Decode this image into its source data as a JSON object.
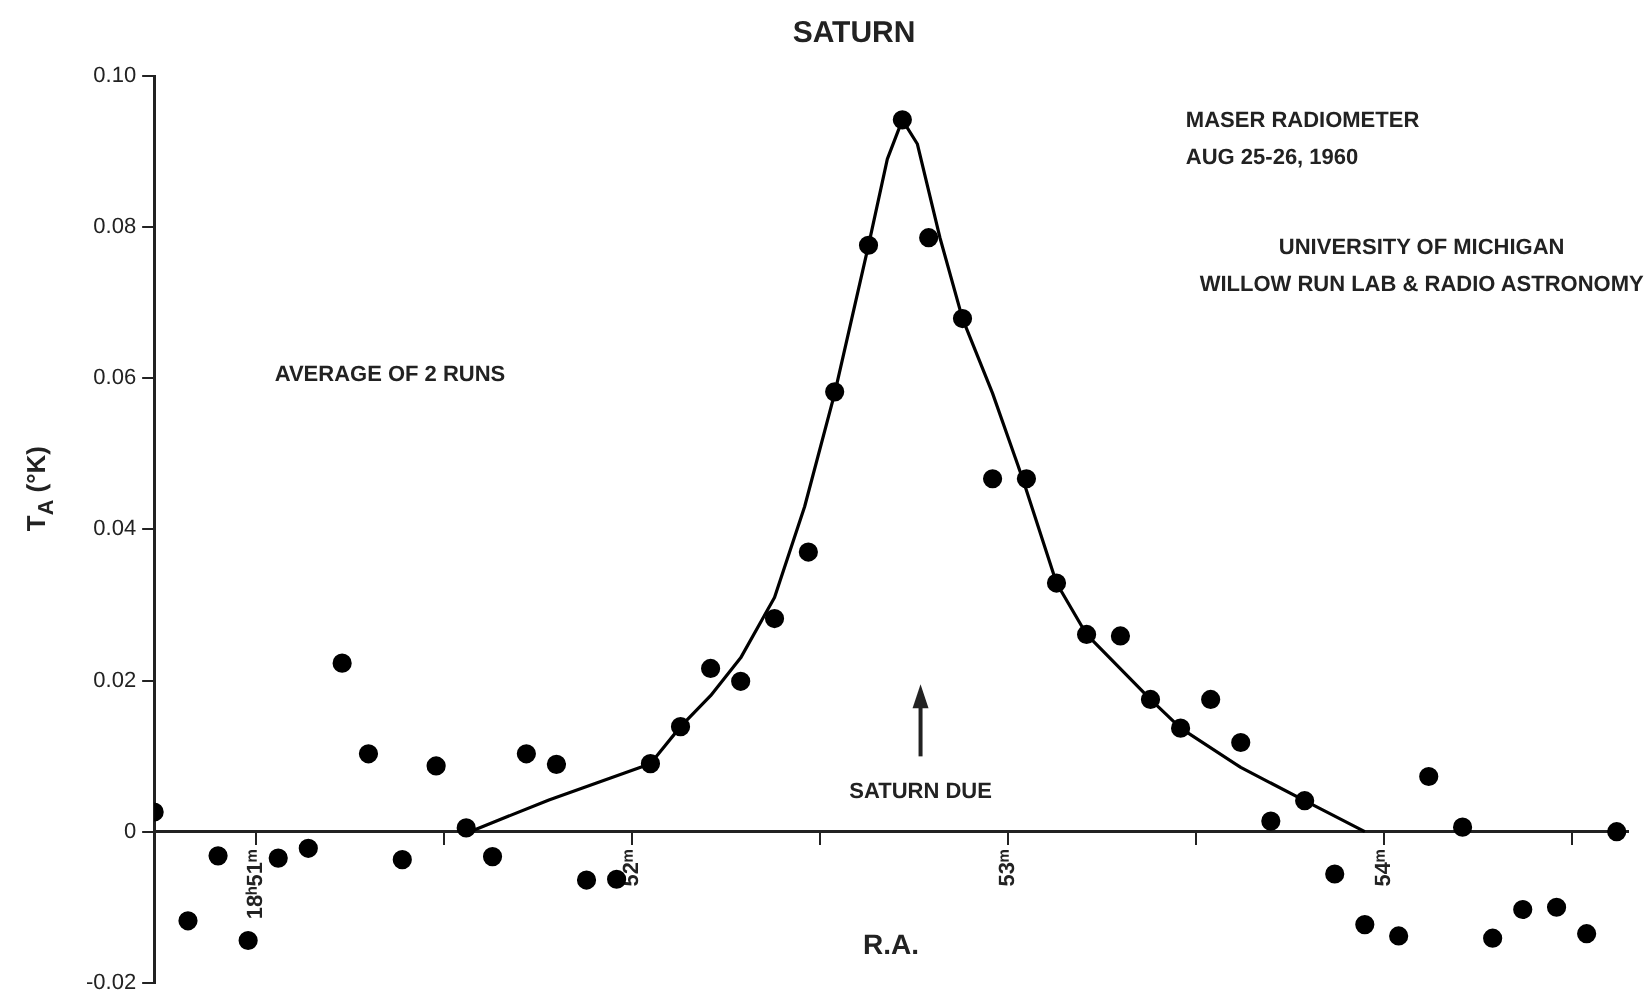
{
  "chart_data": {
    "type": "scatter",
    "title": "SATURN",
    "xlabel": "R.A.",
    "ylabel": "T$_{A}$ (°K)",
    "annotations": [
      "MASER RADIOMETER",
      "AUG 25-26, 1960",
      "UNIVERSITY OF MICHIGAN",
      "WILLOW RUN LAB & RADIO ASTRONOMY",
      "AVERAGE OF 2 RUNS",
      "SATURN DUE"
    ],
    "xlim": [
      50.73,
      54.65
    ],
    "ylim": [
      -0.02,
      0.1
    ],
    "xticks": [
      {
        "value": 51,
        "label": "18ʰ51ᵐ"
      },
      {
        "value": 51.5,
        "label": null
      },
      {
        "value": 52,
        "label": "52ᵐ"
      },
      {
        "value": 52.5,
        "label": null
      },
      {
        "value": 53,
        "label": "53ᵐ"
      },
      {
        "value": 53.5,
        "label": null
      },
      {
        "value": 54,
        "label": "54ᵐ"
      },
      {
        "value": 54.5,
        "label": null
      }
    ],
    "yticks": [
      {
        "value": -0.02,
        "label": "-0.02"
      },
      {
        "value": 0,
        "label": "0"
      },
      {
        "value": 0.02,
        "label": "0.02"
      },
      {
        "value": 0.04,
        "label": "0.04"
      },
      {
        "value": 0.06,
        "label": "0.06"
      },
      {
        "value": 0.08,
        "label": "0.08"
      },
      {
        "value": 0.1,
        "label": "0.10"
      }
    ],
    "grid": false,
    "legend": false,
    "marker": "circle",
    "series": [
      {
        "type": "scatter",
        "color": "#000000",
        "x": [
          50.73,
          50.82,
          50.9,
          50.98,
          51.06,
          51.14,
          51.23,
          51.3,
          51.39,
          51.48,
          51.56,
          51.63,
          51.72,
          51.8,
          51.88,
          51.96,
          52.05,
          52.13,
          52.21,
          52.29,
          52.38,
          52.47,
          52.54,
          52.63,
          52.72,
          52.79,
          52.88,
          52.96,
          53.05,
          53.13,
          53.21,
          53.3,
          53.38,
          53.46,
          53.54,
          53.62,
          53.7,
          53.79,
          53.87,
          53.95,
          54.04,
          54.12,
          54.21,
          54.29,
          54.37,
          54.46,
          54.54,
          54.62
        ],
        "values": [
          0.0026,
          -0.0118,
          -0.0032,
          -0.0144,
          -0.0035,
          -0.0022,
          0.0223,
          0.0103,
          -0.0037,
          0.0087,
          0.0005,
          -0.0033,
          0.0103,
          0.0089,
          -0.0064,
          -0.0063,
          0.009,
          0.0139,
          0.0216,
          0.0199,
          0.0282,
          0.037,
          0.0582,
          0.0776,
          0.0942,
          0.0786,
          0.0679,
          0.0467,
          0.0467,
          0.0329,
          0.0261,
          0.0259,
          0.0175,
          0.0137,
          0.0175,
          0.0118,
          0.0014,
          0.0041,
          -0.0056,
          -0.0123,
          -0.0138,
          0.0073,
          0.0006,
          -0.0141,
          -0.0103,
          -0.01,
          -0.0135,
          0
        ]
      },
      {
        "type": "line",
        "color": "#000000",
        "marker": "none",
        "x": [
          51.57,
          51.78,
          52.05,
          52.13,
          52.21,
          52.29,
          52.38,
          52.46,
          52.54,
          52.63,
          52.68,
          52.72,
          52.76,
          52.82,
          52.88,
          52.96,
          53.04,
          53.13,
          53.21,
          53.38,
          53.46,
          53.62,
          53.79,
          53.95
        ],
        "values": [
          0,
          0.0042,
          0.009,
          0.0139,
          0.018,
          0.023,
          0.031,
          0.043,
          0.058,
          0.0776,
          0.089,
          0.0942,
          0.091,
          0.0786,
          0.0679,
          0.058,
          0.0467,
          0.0329,
          0.0261,
          0.0175,
          0.0137,
          0.0085,
          0.0041,
          0
        ]
      }
    ]
  }
}
